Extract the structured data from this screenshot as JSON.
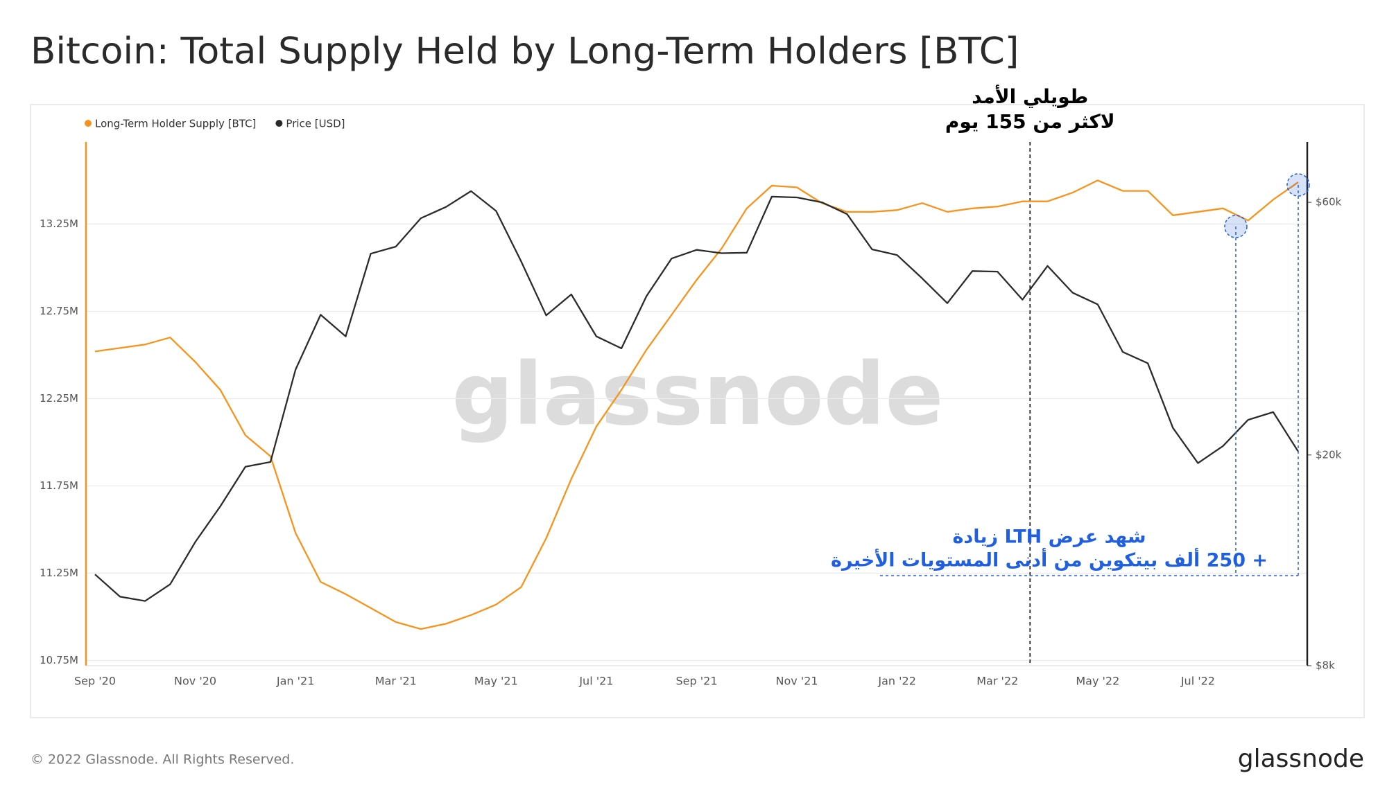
{
  "chart_data": {
    "type": "line",
    "title": "Bitcoin: Total Supply Held by Long-Term Holders [BTC]",
    "watermark": "glassnode",
    "categories": [
      "Sep '20",
      null,
      null,
      null,
      "Nov '20",
      null,
      null,
      null,
      "Jan '21",
      null,
      null,
      null,
      "Mar '21",
      null,
      null,
      null,
      "May '21",
      null,
      null,
      null,
      "Jul '21",
      null,
      null,
      null,
      "Sep '21",
      null,
      null,
      null,
      "Nov '21",
      null,
      null,
      null,
      "Jan '22",
      null,
      null,
      null,
      "Mar '22",
      null,
      null,
      null,
      "May '22",
      null,
      null,
      null,
      "Jul '22",
      null,
      null,
      null,
      null
    ],
    "series": [
      {
        "name": "Long-Term Holder Supply [BTC]",
        "color": "#f7931a",
        "axis": "y",
        "values": [
          12520000,
          12540000,
          12560000,
          12600000,
          12460000,
          12300000,
          12040000,
          11920000,
          11480000,
          11200000,
          11130000,
          11050000,
          10970000,
          10930000,
          10960000,
          11010000,
          11070000,
          11170000,
          11450000,
          11790000,
          12090000,
          12300000,
          12530000,
          12730000,
          12930000,
          13110000,
          13340000,
          13470000,
          13460000,
          13370000,
          13320000,
          13320000,
          13330000,
          13370000,
          13320000,
          13340000,
          13350000,
          13380000,
          13380000,
          13430000,
          13500000,
          13440000,
          13440000,
          13300000,
          13320000,
          13340000,
          13270000,
          13390000,
          13490000
        ]
      },
      {
        "name": "Price [USD]",
        "color": "#2b2b2b",
        "axis": "y2",
        "values": [
          11900,
          10800,
          10600,
          11400,
          13700,
          16000,
          19000,
          19400,
          29000,
          36800,
          33500,
          48000,
          49500,
          56000,
          58800,
          63000,
          57800,
          46400,
          36700,
          40200,
          33500,
          31800,
          39900,
          47000,
          48800,
          48100,
          48200,
          61500,
          61300,
          60000,
          57000,
          48900,
          47700,
          43100,
          38700,
          44500,
          44400,
          39300,
          45500,
          40500,
          38500,
          31300,
          29800,
          22500,
          19300,
          20800,
          23300,
          24100,
          20300
        ]
      }
    ],
    "ylim": [
      10720000,
      13720000
    ],
    "yticks": [
      {
        "value": 10750000,
        "label": "10.75M"
      },
      {
        "value": 11250000,
        "label": "11.25M"
      },
      {
        "value": 11750000,
        "label": "11.75M"
      },
      {
        "value": 12250000,
        "label": "12.25M"
      },
      {
        "value": 12750000,
        "label": "12.75M"
      },
      {
        "value": 13250000,
        "label": "13.25M"
      }
    ],
    "y2lim": [
      8000,
      78000
    ],
    "y2ticks": [
      {
        "value": 8000,
        "label": "$8k"
      },
      {
        "value": 20000,
        "label": "$20k"
      },
      {
        "value": 60000,
        "label": "$60k"
      }
    ],
    "y2_log": true,
    "grid": true,
    "legend": "top-left",
    "annotations": [
      {
        "lines": [
          "طويلي الأمد",
          "لاكثر من 155 يوم"
        ],
        "color": "#000000"
      },
      {
        "lines": [
          "شهد عرض LTH زيادة",
          "+ 250 ألف بيتكوين من أدنى المستويات الأخيرة"
        ],
        "color": "#1f5fe0"
      }
    ]
  },
  "footer": "© 2022 Glassnode. All Rights Reserved.",
  "logo": "glassnode"
}
